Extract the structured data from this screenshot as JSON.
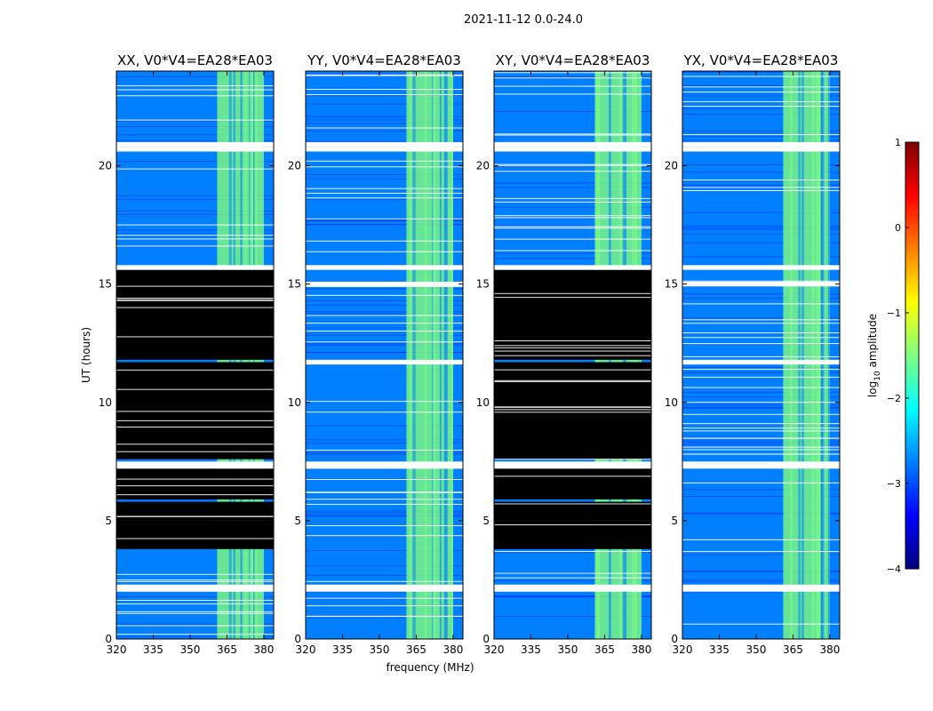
{
  "suptitle": "2021-11-12 0.0-24.0",
  "colorbar": {
    "label": "log",
    "label_sub": "10",
    "label_rest": " amplitude",
    "ticks": [
      1,
      0,
      -1,
      -2,
      -3,
      -4
    ],
    "tick_labels": [
      "1",
      "0",
      "−1",
      "−2",
      "−3",
      "−4"
    ],
    "range": [
      -4,
      1
    ],
    "colormap": [
      "#00007f",
      "#0000ff",
      "#007fff",
      "#00ffff",
      "#7fff7f",
      "#ffff00",
      "#ff7f00",
      "#ff0000",
      "#7f0000"
    ]
  },
  "colors": {
    "flagged": "#000000",
    "gap": "#ffffff",
    "frame": "#000000"
  },
  "chart_data": [
    {
      "type": "heatmap",
      "title": "XX, V0*V4=EA28*EA03",
      "xlabel": "",
      "ylabel": "UT (hours)",
      "xlim": [
        320,
        384
      ],
      "ylim": [
        0,
        24
      ],
      "xticks": [
        320,
        335,
        350,
        365,
        380
      ],
      "yticks": [
        0,
        5,
        10,
        15,
        20
      ],
      "bright_band_mhz": [
        361,
        380
      ],
      "background_log_amp": -3,
      "band_log_amp": -1.7,
      "flagged_ut_ranges": [
        [
          3.8,
          5.0
        ],
        [
          5.0,
          5.8
        ],
        [
          5.9,
          7.2
        ],
        [
          7.6,
          11.7
        ],
        [
          11.8,
          15.6
        ]
      ],
      "gap_ut_ranges": [
        [
          2.0,
          2.3
        ],
        [
          7.2,
          7.5
        ],
        [
          15.6,
          15.8
        ],
        [
          20.6,
          20.8
        ],
        [
          20.8,
          21.0
        ]
      ]
    },
    {
      "type": "heatmap",
      "title": "YY, V0*V4=EA28*EA03",
      "xlabel": "",
      "ylabel": "",
      "xlim": [
        320,
        384
      ],
      "ylim": [
        0,
        24
      ],
      "xticks": [
        320,
        335,
        350,
        365,
        380
      ],
      "yticks": [
        0,
        5,
        10,
        15,
        20
      ],
      "bright_band_mhz": [
        361,
        380
      ],
      "background_log_amp": -3,
      "band_log_amp": -1.7,
      "flagged_ut_ranges": [],
      "gap_ut_ranges": [
        [
          2.0,
          2.3
        ],
        [
          7.2,
          7.5
        ],
        [
          11.6,
          11.8
        ],
        [
          14.9,
          15.1
        ],
        [
          15.6,
          15.8
        ],
        [
          20.6,
          20.8
        ],
        [
          20.8,
          21.0
        ]
      ]
    },
    {
      "type": "heatmap",
      "title": "XY, V0*V4=EA28*EA03",
      "xlabel": "frequency (MHz)",
      "ylabel": "",
      "xlim": [
        320,
        384
      ],
      "ylim": [
        0,
        24
      ],
      "xticks": [
        320,
        335,
        350,
        365,
        380
      ],
      "yticks": [
        0,
        5,
        10,
        15,
        20
      ],
      "bright_band_mhz": [
        361,
        380
      ],
      "background_log_amp": -3,
      "band_log_amp": -1.7,
      "flagged_ut_ranges": [
        [
          3.8,
          5.0
        ],
        [
          5.0,
          5.8
        ],
        [
          5.9,
          7.2
        ],
        [
          7.6,
          11.7
        ],
        [
          11.8,
          15.6
        ]
      ],
      "gap_ut_ranges": [
        [
          2.0,
          2.3
        ],
        [
          7.2,
          7.5
        ],
        [
          15.6,
          15.8
        ],
        [
          20.6,
          20.8
        ],
        [
          20.8,
          21.0
        ]
      ]
    },
    {
      "type": "heatmap",
      "title": "YX, V0*V4=EA28*EA03",
      "xlabel": "",
      "ylabel": "",
      "xlim": [
        320,
        384
      ],
      "ylim": [
        0,
        24
      ],
      "xticks": [
        320,
        335,
        350,
        365,
        380
      ],
      "yticks": [
        0,
        5,
        10,
        15,
        20
      ],
      "bright_band_mhz": [
        361,
        380
      ],
      "background_log_amp": -3,
      "band_log_amp": -1.7,
      "flagged_ut_ranges": [],
      "gap_ut_ranges": [
        [
          2.0,
          2.3
        ],
        [
          7.2,
          7.5
        ],
        [
          11.6,
          11.8
        ],
        [
          14.9,
          15.1
        ],
        [
          15.6,
          15.8
        ],
        [
          20.6,
          20.8
        ],
        [
          20.8,
          21.0
        ]
      ]
    }
  ]
}
